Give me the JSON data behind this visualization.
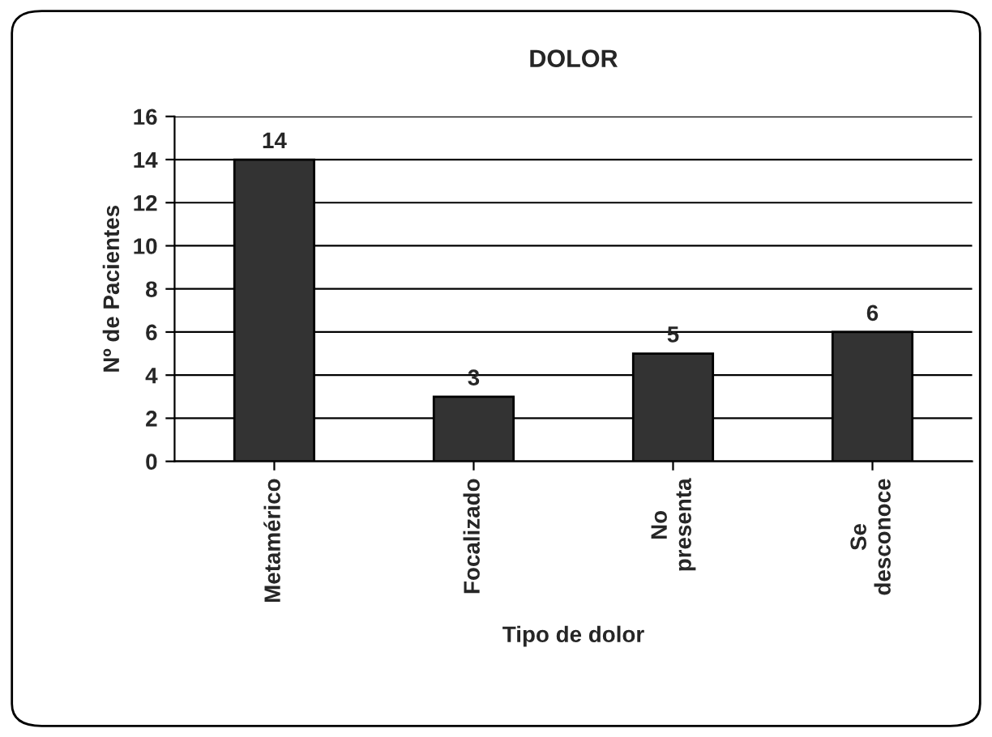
{
  "chart_data": {
    "type": "bar",
    "title": "DOLOR",
    "xlabel": "Tipo de dolor",
    "ylabel": "Nº de Pacientes",
    "categories": [
      "Metamérico",
      "Focalizado",
      "No\npresenta",
      "Se\ndesconoce"
    ],
    "values": [
      14,
      3,
      5,
      6
    ],
    "color": "#333333",
    "ylim": [
      0,
      16
    ],
    "yticks": [
      0,
      2,
      4,
      6,
      8,
      10,
      12,
      14,
      16
    ],
    "grid": "y",
    "data_labels": true,
    "legend": false
  }
}
